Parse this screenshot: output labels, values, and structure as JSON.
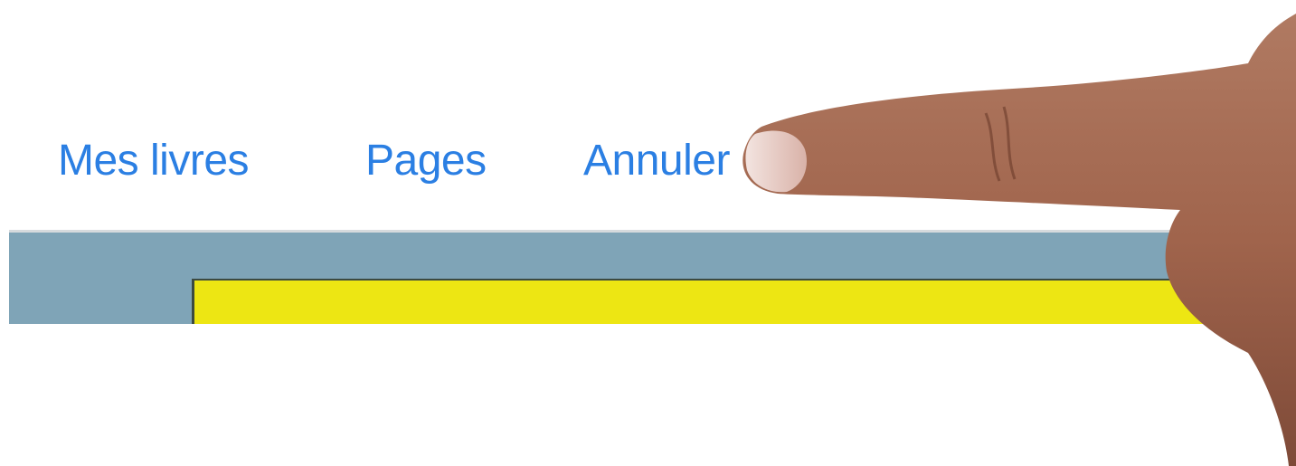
{
  "toolbar": {
    "buttons": [
      "Mes livres",
      "Pages",
      "Annuler"
    ]
  }
}
